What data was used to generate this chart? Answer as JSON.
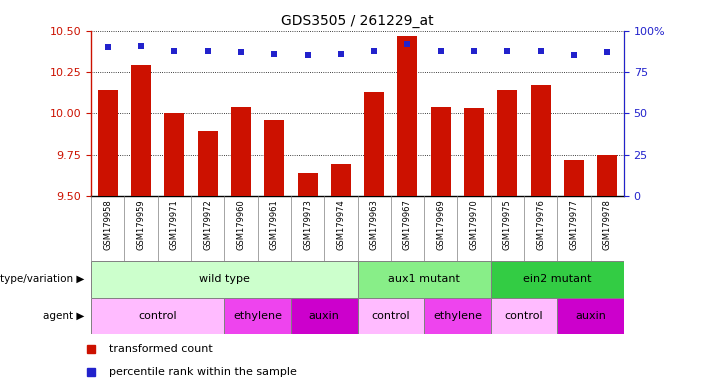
{
  "title": "GDS3505 / 261229_at",
  "samples": [
    "GSM179958",
    "GSM179959",
    "GSM179971",
    "GSM179972",
    "GSM179960",
    "GSM179961",
    "GSM179973",
    "GSM179974",
    "GSM179963",
    "GSM179967",
    "GSM179969",
    "GSM179970",
    "GSM179975",
    "GSM179976",
    "GSM179977",
    "GSM179978"
  ],
  "transformed_counts": [
    10.14,
    10.29,
    10.0,
    9.89,
    10.04,
    9.96,
    9.64,
    9.69,
    10.13,
    10.47,
    10.04,
    10.03,
    10.14,
    10.17,
    9.72,
    9.75
  ],
  "percentile_ranks": [
    90,
    91,
    88,
    88,
    87,
    86,
    85,
    86,
    88,
    92,
    88,
    88,
    88,
    88,
    85,
    87
  ],
  "ylim": [
    9.5,
    10.5
  ],
  "yticks": [
    9.5,
    9.75,
    10.0,
    10.25,
    10.5
  ],
  "y2lim": [
    0,
    100
  ],
  "y2ticks": [
    0,
    25,
    50,
    75,
    100
  ],
  "bar_color": "#cc1100",
  "dot_color": "#2222cc",
  "background_color": "#ffffff",
  "xticklabel_bg": "#cccccc",
  "genotype_groups": [
    {
      "label": "wild type",
      "start": 0,
      "end": 8,
      "color": "#ccffcc"
    },
    {
      "label": "aux1 mutant",
      "start": 8,
      "end": 12,
      "color": "#88ee88"
    },
    {
      "label": "ein2 mutant",
      "start": 12,
      "end": 16,
      "color": "#33cc44"
    }
  ],
  "agent_groups": [
    {
      "label": "control",
      "start": 0,
      "end": 4,
      "color": "#ffbbff"
    },
    {
      "label": "ethylene",
      "start": 4,
      "end": 6,
      "color": "#ee44ee"
    },
    {
      "label": "auxin",
      "start": 6,
      "end": 8,
      "color": "#cc00cc"
    },
    {
      "label": "control",
      "start": 8,
      "end": 10,
      "color": "#ffbbff"
    },
    {
      "label": "ethylene",
      "start": 10,
      "end": 12,
      "color": "#ee44ee"
    },
    {
      "label": "control",
      "start": 12,
      "end": 14,
      "color": "#ffbbff"
    },
    {
      "label": "auxin",
      "start": 14,
      "end": 16,
      "color": "#cc00cc"
    }
  ]
}
